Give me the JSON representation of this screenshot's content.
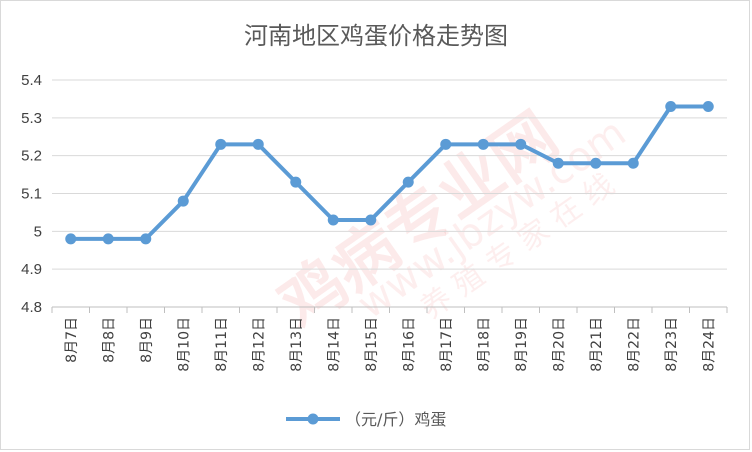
{
  "chart_data": {
    "type": "line",
    "title": "河南地区鸡蛋价格走势图",
    "categories": [
      "8月7日",
      "8月8日",
      "8月9日",
      "8月10日",
      "8月11日",
      "8月12日",
      "8月13日",
      "8月14日",
      "8月15日",
      "8月16日",
      "8月17日",
      "8月18日",
      "8月19日",
      "8月20日",
      "8月21日",
      "8月22日",
      "8月23日",
      "8月24日"
    ],
    "series": [
      {
        "name": "（元/斤）鸡蛋",
        "color": "#5b9bd5",
        "values": [
          4.98,
          4.98,
          4.98,
          5.08,
          5.23,
          5.23,
          5.13,
          5.03,
          5.03,
          5.13,
          5.23,
          5.23,
          5.23,
          5.18,
          5.18,
          5.18,
          5.33,
          5.33
        ]
      }
    ],
    "yticks": [
      "4.8",
      "4.9",
      "5",
      "5.1",
      "5.2",
      "5.3",
      "5.4"
    ],
    "ylim": [
      4.8,
      5.4
    ],
    "grid": true,
    "legend_position": "bottom",
    "xlabel": "",
    "ylabel": ""
  },
  "watermark": {
    "main": "鸡病专业网",
    "url": "www.jbzyw.com",
    "slogan": "养 殖 专 家 在 线"
  }
}
